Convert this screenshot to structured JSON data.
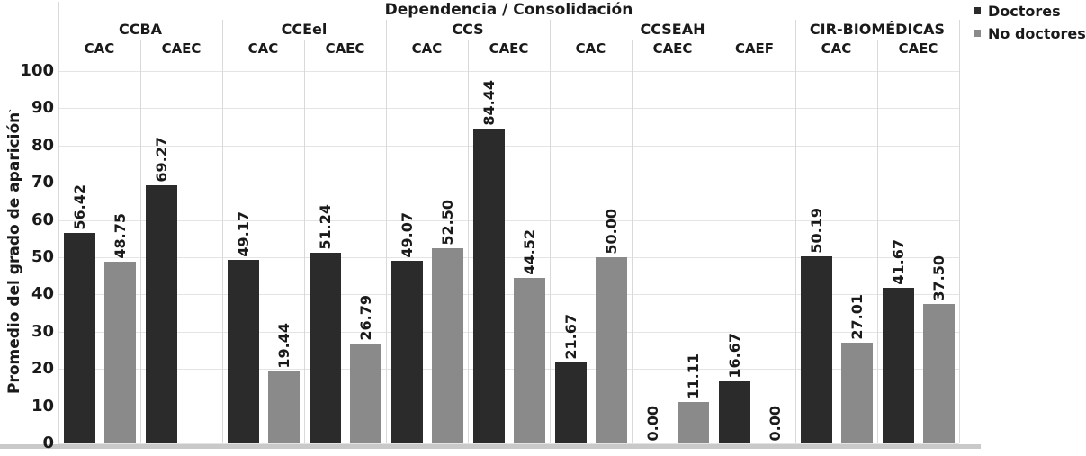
{
  "chart_data": {
    "type": "bar",
    "title": "Dependencia / Consolidación",
    "ylabel": "Promedio del grado de aparición",
    "ylabel_mark": "`",
    "ylim": [
      0,
      100
    ],
    "yticks": [
      "0",
      "10",
      "20",
      "30",
      "40",
      "50",
      "60",
      "70",
      "80",
      "90",
      "100"
    ],
    "grid": "horizontal gridlines every 10 units; vertical separators between category columns",
    "legend_position": "top-right",
    "legend": [
      {
        "label": "Doctores",
        "color": "#2b2b2b"
      },
      {
        "label": "No doctores",
        "color": "#8a8a8a"
      }
    ],
    "series_names": [
      "Doctores",
      "No doctores"
    ],
    "groups": [
      {
        "label": "CCBA",
        "columns": [
          {
            "label": "CAC",
            "values": [
              "56.42",
              "48.75"
            ]
          },
          {
            "label": "CAEC",
            "values": [
              "69.27",
              null
            ]
          }
        ]
      },
      {
        "label": "CCEel",
        "columns": [
          {
            "label": "CAC",
            "values": [
              "49.17",
              "19.44"
            ]
          },
          {
            "label": "CAEC",
            "values": [
              "51.24",
              "26.79"
            ]
          }
        ]
      },
      {
        "label": "CCS",
        "columns": [
          {
            "label": "CAC",
            "values": [
              "49.07",
              "52.50"
            ]
          },
          {
            "label": "CAEC",
            "values": [
              "84.44",
              "44.52"
            ]
          }
        ]
      },
      {
        "label": "CCSEAH",
        "columns": [
          {
            "label": "CAC",
            "values": [
              "21.67",
              "50.00"
            ]
          },
          {
            "label": "CAEC",
            "values": [
              "0.00",
              "11.11"
            ]
          },
          {
            "label": "CAEF",
            "values": [
              "16.67",
              "0.00"
            ]
          }
        ]
      },
      {
        "label": "CIR-BIOMÉDICAS",
        "columns": [
          {
            "label": "CAC",
            "values": [
              "50.19",
              "27.01"
            ]
          },
          {
            "label": "CAEC",
            "values": [
              "41.67",
              "37.50"
            ]
          }
        ]
      }
    ],
    "colors": {
      "bar_dark": "#2b2b2b",
      "bar_gray": "#8a8a8a",
      "gridline": "#e4e4e4",
      "separator": "#d9d9d9",
      "axis_strip": "#c9c9c9",
      "text": "#1a1a1a"
    }
  }
}
